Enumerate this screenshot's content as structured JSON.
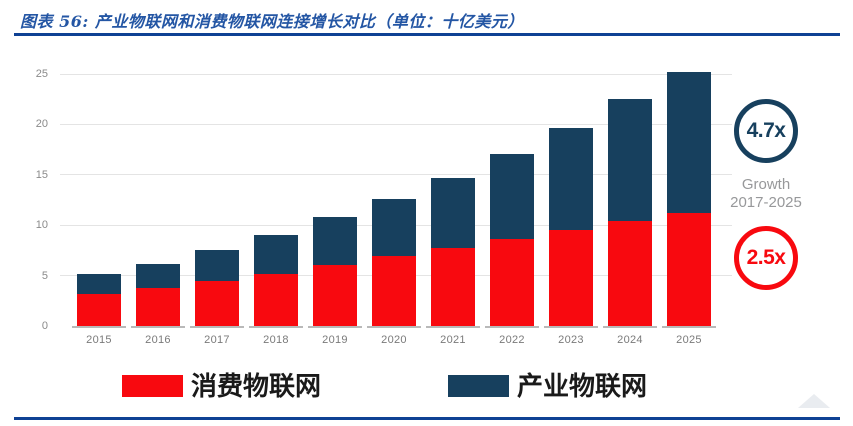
{
  "title": "图表 56:  产业物联网和消费物联网连接增长对比（单位：十亿美元）",
  "colors": {
    "consumer_red": "#f8090f",
    "industrial_navy": "#17405e",
    "title_blue": "#2456a4",
    "rule_blue": "#0e4194",
    "gridline_gray": "#e4e4e4",
    "axis_label_gray": "#8a8a8a"
  },
  "chart_data": {
    "type": "bar",
    "stacked": true,
    "title": "产业物联网和消费物联网连接增长对比",
    "unit": "十亿美元",
    "categories": [
      "2015",
      "2016",
      "2017",
      "2018",
      "2019",
      "2020",
      "2021",
      "2022",
      "2023",
      "2024",
      "2025"
    ],
    "series": [
      {
        "name": "消费物联网",
        "color": "#f8090f",
        "values": [
          3.2,
          3.8,
          4.5,
          5.2,
          6.1,
          6.9,
          7.7,
          8.6,
          9.5,
          10.4,
          11.2
        ]
      },
      {
        "name": "产业物联网",
        "color": "#17405e",
        "values": [
          2.0,
          2.4,
          3.0,
          3.8,
          4.7,
          5.7,
          7.0,
          8.5,
          10.1,
          12.1,
          14.0
        ]
      }
    ],
    "ylim": [
      0,
      25
    ],
    "yticks": [
      0,
      5,
      10,
      15,
      20,
      25
    ],
    "grid": true,
    "legend_position": "bottom"
  },
  "annotations": {
    "industrial_growth": "4.7x",
    "consumer_growth": "2.5x",
    "growth_line1": "Growth",
    "growth_line2": "2017-2025"
  },
  "legend": {
    "consumer": "消费物联网",
    "industrial": "产业物联网"
  }
}
